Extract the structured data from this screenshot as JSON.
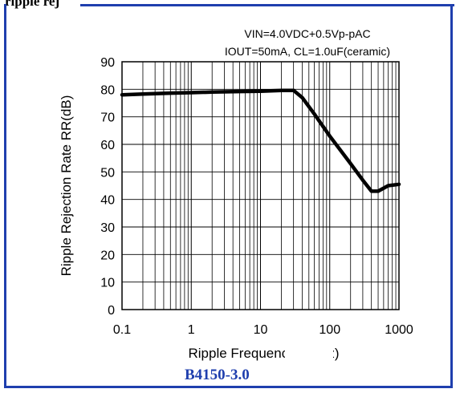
{
  "header": {
    "partial_title": "ripple rej"
  },
  "device_label": "B4150-3.0",
  "chart_data": {
    "type": "line",
    "title": "",
    "annotations": [
      "VIN=4.0VDC+0.5Vp-pAC",
      "IOUT=50mA, CL=1.0uF(ceramic)"
    ],
    "xlabel": "Ripple Frequency f (kHz)",
    "ylabel": "Ripple Rejection Rate RR(dB)",
    "xscale": "log",
    "xlim": [
      0.1,
      1000
    ],
    "ylim": [
      0,
      90
    ],
    "xticks": [
      "0.1",
      "1",
      "10",
      "100",
      "1000"
    ],
    "yticks": [
      "0",
      "10",
      "20",
      "30",
      "40",
      "50",
      "60",
      "70",
      "80",
      "90"
    ],
    "grid": true,
    "line_color": "#000000",
    "frame_color": "#1f3fae",
    "series": [
      {
        "x": [
          0.1,
          0.2,
          0.5,
          1,
          2,
          5,
          10,
          20,
          30,
          40,
          60,
          100,
          200,
          300,
          400,
          500,
          700,
          1000
        ],
        "y": [
          78,
          78.3,
          78.6,
          78.8,
          79,
          79.2,
          79.3,
          79.6,
          79.6,
          77,
          71,
          63,
          53,
          47,
          43,
          43,
          45,
          45.5
        ]
      }
    ]
  }
}
